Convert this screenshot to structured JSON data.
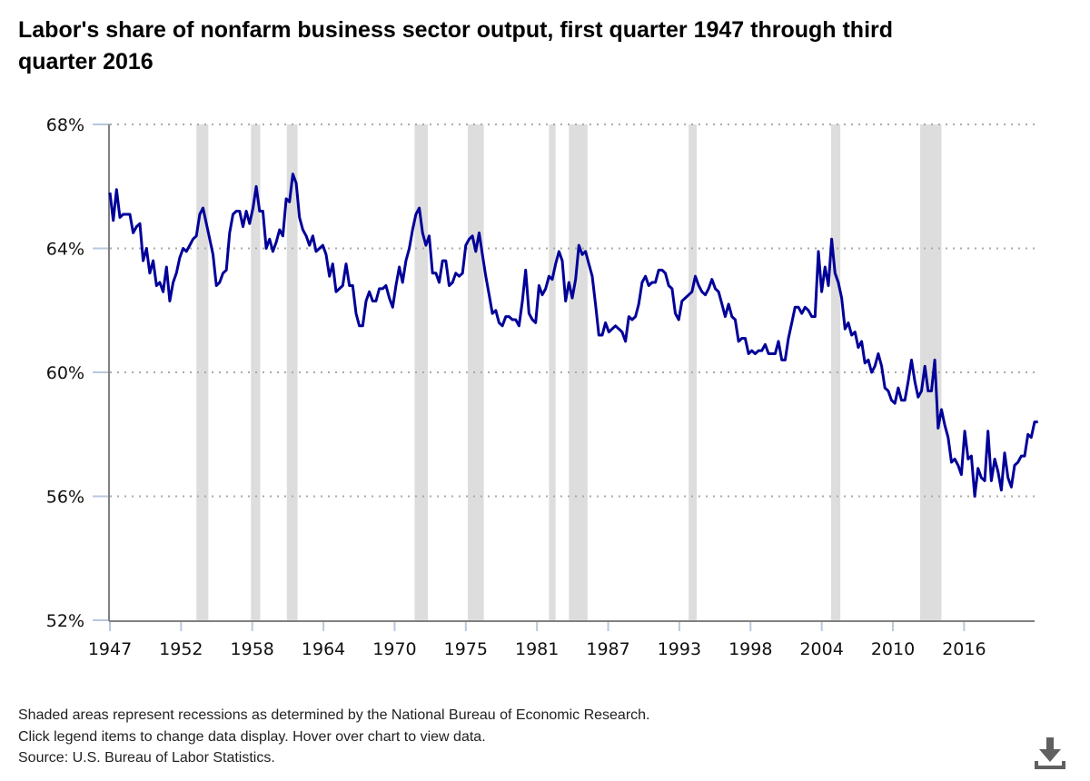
{
  "title": "Labor's share of nonfarm business sector output, first quarter 1947 through third quarter 2016",
  "notes": [
    "Shaded areas represent recessions as determined by the National Bureau of Economic Research.",
    "Click legend items to change data display. Hover over chart to view data.",
    "Source: U.S. Bureau of Labor Statistics."
  ],
  "download_icon": "download-icon",
  "colors": {
    "line": "#000099",
    "recession": "#dddddd",
    "grid": "#aaaaaa",
    "axis": "#808080",
    "tick": "#b8c8dc"
  },
  "chart_data": {
    "type": "line",
    "title": "Labor's share of nonfarm business sector output, first quarter 1947 through third quarter 2016",
    "xlabel": "",
    "ylabel": "",
    "x_range": [
      1947.0,
      2016.5
    ],
    "ylim": [
      52,
      68
    ],
    "y_ticks": [
      52,
      56,
      60,
      64,
      68
    ],
    "y_tick_labels": [
      "52%",
      "56%",
      "60%",
      "64%",
      "68%"
    ],
    "x_ticks": [
      1947.0,
      1952.35,
      1957.7,
      1963.05,
      1968.4,
      1973.75,
      1979.1,
      1984.45,
      1989.8,
      1995.15,
      2000.5,
      2005.85,
      2011.2
    ],
    "x_tick_labels": [
      "1947",
      "1952",
      "1958",
      "1964",
      "1970",
      "1975",
      "1981",
      "1987",
      "1993",
      "1998",
      "2004",
      "2010",
      "2016"
    ],
    "grid": "horizontal-dotted",
    "legend": "none",
    "recessions": [
      [
        1953.5,
        1954.4
      ],
      [
        1957.6,
        1958.3
      ],
      [
        1960.3,
        1961.1
      ],
      [
        1969.9,
        1970.9
      ],
      [
        1973.9,
        1975.1
      ],
      [
        1980.0,
        1980.5
      ],
      [
        1981.5,
        1982.9
      ],
      [
        1990.5,
        1991.1
      ],
      [
        2001.2,
        2001.9
      ],
      [
        2007.9,
        2009.5
      ]
    ],
    "series": [
      {
        "name": "Labor share",
        "points": [
          [
            1947.0,
            65.8
          ],
          [
            1947.25,
            64.9
          ],
          [
            1947.5,
            65.9
          ],
          [
            1947.75,
            65.0
          ],
          [
            1948.0,
            65.1
          ],
          [
            1948.25,
            65.1
          ],
          [
            1948.5,
            65.1
          ],
          [
            1948.75,
            64.5
          ],
          [
            1949.0,
            64.7
          ],
          [
            1949.25,
            64.8
          ],
          [
            1949.5,
            63.6
          ],
          [
            1949.75,
            64.0
          ],
          [
            1950.0,
            63.2
          ],
          [
            1950.25,
            63.6
          ],
          [
            1950.5,
            62.8
          ],
          [
            1950.75,
            62.9
          ],
          [
            1951.0,
            62.6
          ],
          [
            1951.25,
            63.4
          ],
          [
            1951.5,
            62.3
          ],
          [
            1951.75,
            62.9
          ],
          [
            1952.0,
            63.2
          ],
          [
            1952.25,
            63.7
          ],
          [
            1952.5,
            64.0
          ],
          [
            1952.75,
            63.9
          ],
          [
            1953.0,
            64.1
          ],
          [
            1953.25,
            64.3
          ],
          [
            1953.5,
            64.4
          ],
          [
            1953.75,
            65.1
          ],
          [
            1954.0,
            65.3
          ],
          [
            1954.25,
            64.8
          ],
          [
            1954.5,
            64.3
          ],
          [
            1954.75,
            63.8
          ],
          [
            1955.0,
            62.8
          ],
          [
            1955.25,
            62.9
          ],
          [
            1955.5,
            63.2
          ],
          [
            1955.75,
            63.3
          ],
          [
            1956.0,
            64.5
          ],
          [
            1956.25,
            65.1
          ],
          [
            1956.5,
            65.2
          ],
          [
            1956.75,
            65.2
          ],
          [
            1957.0,
            64.7
          ],
          [
            1957.25,
            65.2
          ],
          [
            1957.5,
            64.8
          ],
          [
            1957.75,
            65.3
          ],
          [
            1958.0,
            66.0
          ],
          [
            1958.25,
            65.2
          ],
          [
            1958.5,
            65.2
          ],
          [
            1958.75,
            64.0
          ],
          [
            1959.0,
            64.3
          ],
          [
            1959.25,
            63.9
          ],
          [
            1959.5,
            64.2
          ],
          [
            1959.75,
            64.6
          ],
          [
            1960.0,
            64.4
          ],
          [
            1960.25,
            65.6
          ],
          [
            1960.5,
            65.5
          ],
          [
            1960.75,
            66.4
          ],
          [
            1961.0,
            66.1
          ],
          [
            1961.25,
            65.0
          ],
          [
            1961.5,
            64.6
          ],
          [
            1961.75,
            64.4
          ],
          [
            1962.0,
            64.1
          ],
          [
            1962.25,
            64.4
          ],
          [
            1962.5,
            63.9
          ],
          [
            1962.75,
            64.0
          ],
          [
            1963.0,
            64.1
          ],
          [
            1963.25,
            63.8
          ],
          [
            1963.5,
            63.1
          ],
          [
            1963.75,
            63.5
          ],
          [
            1964.0,
            62.6
          ],
          [
            1964.25,
            62.7
          ],
          [
            1964.5,
            62.8
          ],
          [
            1964.75,
            63.5
          ],
          [
            1965.0,
            62.8
          ],
          [
            1965.25,
            62.8
          ],
          [
            1965.5,
            61.9
          ],
          [
            1965.75,
            61.5
          ],
          [
            1966.0,
            61.5
          ],
          [
            1966.25,
            62.3
          ],
          [
            1966.5,
            62.6
          ],
          [
            1966.75,
            62.3
          ],
          [
            1967.0,
            62.3
          ],
          [
            1967.25,
            62.7
          ],
          [
            1967.5,
            62.7
          ],
          [
            1967.75,
            62.8
          ],
          [
            1968.0,
            62.4
          ],
          [
            1968.25,
            62.1
          ],
          [
            1968.5,
            62.8
          ],
          [
            1968.75,
            63.4
          ],
          [
            1969.0,
            62.9
          ],
          [
            1969.25,
            63.6
          ],
          [
            1969.5,
            64.0
          ],
          [
            1969.75,
            64.6
          ],
          [
            1970.0,
            65.1
          ],
          [
            1970.25,
            65.3
          ],
          [
            1970.5,
            64.5
          ],
          [
            1970.75,
            64.1
          ],
          [
            1971.0,
            64.4
          ],
          [
            1971.25,
            63.2
          ],
          [
            1971.5,
            63.2
          ],
          [
            1971.75,
            62.9
          ],
          [
            1972.0,
            63.6
          ],
          [
            1972.25,
            63.6
          ],
          [
            1972.5,
            62.8
          ],
          [
            1972.75,
            62.9
          ],
          [
            1973.0,
            63.2
          ],
          [
            1973.25,
            63.1
          ],
          [
            1973.5,
            63.2
          ],
          [
            1973.75,
            64.1
          ],
          [
            1974.0,
            64.3
          ],
          [
            1974.25,
            64.4
          ],
          [
            1974.5,
            63.9
          ],
          [
            1974.75,
            64.5
          ],
          [
            1975.0,
            63.8
          ],
          [
            1975.25,
            63.1
          ],
          [
            1975.5,
            62.5
          ],
          [
            1975.75,
            61.9
          ],
          [
            1976.0,
            62.0
          ],
          [
            1976.25,
            61.6
          ],
          [
            1976.5,
            61.5
          ],
          [
            1976.75,
            61.8
          ],
          [
            1977.0,
            61.8
          ],
          [
            1977.25,
            61.7
          ],
          [
            1977.5,
            61.7
          ],
          [
            1977.75,
            61.5
          ],
          [
            1978.0,
            62.3
          ],
          [
            1978.25,
            63.3
          ],
          [
            1978.5,
            61.9
          ],
          [
            1978.75,
            61.7
          ],
          [
            1979.0,
            61.6
          ],
          [
            1979.25,
            62.8
          ],
          [
            1979.5,
            62.5
          ],
          [
            1979.75,
            62.7
          ],
          [
            1980.0,
            63.1
          ],
          [
            1980.25,
            63.0
          ],
          [
            1980.5,
            63.5
          ],
          [
            1980.75,
            63.9
          ],
          [
            1981.0,
            63.6
          ],
          [
            1981.25,
            62.3
          ],
          [
            1981.5,
            62.9
          ],
          [
            1981.75,
            62.4
          ],
          [
            1982.0,
            63.0
          ],
          [
            1982.25,
            64.1
          ],
          [
            1982.5,
            63.8
          ],
          [
            1982.75,
            63.9
          ],
          [
            1983.0,
            63.5
          ],
          [
            1983.25,
            63.1
          ],
          [
            1983.5,
            62.2
          ],
          [
            1983.75,
            61.2
          ],
          [
            1984.0,
            61.2
          ],
          [
            1984.25,
            61.6
          ],
          [
            1984.5,
            61.3
          ],
          [
            1984.75,
            61.4
          ],
          [
            1985.0,
            61.5
          ],
          [
            1985.25,
            61.4
          ],
          [
            1985.5,
            61.3
          ],
          [
            1985.75,
            61.0
          ],
          [
            1986.0,
            61.8
          ],
          [
            1986.25,
            61.7
          ],
          [
            1986.5,
            61.8
          ],
          [
            1986.75,
            62.2
          ],
          [
            1987.0,
            62.9
          ],
          [
            1987.25,
            63.1
          ],
          [
            1987.5,
            62.8
          ],
          [
            1987.75,
            62.9
          ],
          [
            1988.0,
            62.9
          ],
          [
            1988.25,
            63.3
          ],
          [
            1988.5,
            63.3
          ],
          [
            1988.75,
            63.2
          ],
          [
            1989.0,
            62.8
          ],
          [
            1989.25,
            62.7
          ],
          [
            1989.5,
            61.9
          ],
          [
            1989.75,
            61.7
          ],
          [
            1990.0,
            62.3
          ],
          [
            1990.25,
            62.4
          ],
          [
            1990.5,
            62.5
          ],
          [
            1990.75,
            62.6
          ],
          [
            1991.0,
            63.1
          ],
          [
            1991.25,
            62.8
          ],
          [
            1991.5,
            62.6
          ],
          [
            1991.75,
            62.5
          ],
          [
            1992.0,
            62.7
          ],
          [
            1992.25,
            63.0
          ],
          [
            1992.5,
            62.7
          ],
          [
            1992.75,
            62.6
          ],
          [
            1993.0,
            62.2
          ],
          [
            1993.25,
            61.8
          ],
          [
            1993.5,
            62.2
          ],
          [
            1993.75,
            61.8
          ],
          [
            1994.0,
            61.7
          ],
          [
            1994.25,
            61.0
          ],
          [
            1994.5,
            61.1
          ],
          [
            1994.75,
            61.1
          ],
          [
            1995.0,
            60.6
          ],
          [
            1995.25,
            60.7
          ],
          [
            1995.5,
            60.6
          ],
          [
            1995.75,
            60.7
          ],
          [
            1996.0,
            60.7
          ],
          [
            1996.25,
            60.9
          ],
          [
            1996.5,
            60.6
          ],
          [
            1996.75,
            60.6
          ],
          [
            1997.0,
            60.6
          ],
          [
            1997.25,
            61.0
          ],
          [
            1997.5,
            60.4
          ],
          [
            1997.75,
            60.4
          ],
          [
            1998.0,
            61.1
          ],
          [
            1998.25,
            61.6
          ],
          [
            1998.5,
            62.1
          ],
          [
            1998.75,
            62.1
          ],
          [
            1999.0,
            61.9
          ],
          [
            1999.25,
            62.1
          ],
          [
            1999.5,
            62.0
          ],
          [
            1999.75,
            61.8
          ],
          [
            2000.0,
            61.8
          ],
          [
            2000.25,
            63.9
          ],
          [
            2000.5,
            62.6
          ],
          [
            2000.75,
            63.4
          ],
          [
            2001.0,
            62.8
          ],
          [
            2001.25,
            64.3
          ],
          [
            2001.5,
            63.2
          ],
          [
            2001.75,
            62.9
          ],
          [
            2002.0,
            62.4
          ],
          [
            2002.25,
            61.4
          ],
          [
            2002.5,
            61.6
          ],
          [
            2002.75,
            61.2
          ],
          [
            2003.0,
            61.3
          ],
          [
            2003.25,
            60.8
          ],
          [
            2003.5,
            61.0
          ],
          [
            2003.75,
            60.3
          ],
          [
            2004.0,
            60.4
          ],
          [
            2004.25,
            60.0
          ],
          [
            2004.5,
            60.2
          ],
          [
            2004.75,
            60.6
          ],
          [
            2005.0,
            60.2
          ],
          [
            2005.25,
            59.5
          ],
          [
            2005.5,
            59.4
          ],
          [
            2005.75,
            59.1
          ],
          [
            2006.0,
            59.0
          ],
          [
            2006.25,
            59.5
          ],
          [
            2006.5,
            59.1
          ],
          [
            2006.75,
            59.1
          ],
          [
            2007.0,
            59.7
          ],
          [
            2007.25,
            60.4
          ],
          [
            2007.5,
            59.7
          ],
          [
            2007.75,
            59.2
          ],
          [
            2008.0,
            59.4
          ],
          [
            2008.25,
            60.2
          ],
          [
            2008.5,
            59.4
          ],
          [
            2008.75,
            59.4
          ],
          [
            2009.0,
            60.4
          ],
          [
            2009.25,
            58.2
          ],
          [
            2009.5,
            58.8
          ],
          [
            2009.75,
            58.3
          ],
          [
            2010.0,
            57.9
          ],
          [
            2010.25,
            57.1
          ],
          [
            2010.5,
            57.2
          ],
          [
            2010.75,
            57.0
          ],
          [
            2011.0,
            56.7
          ],
          [
            2011.25,
            58.1
          ],
          [
            2011.5,
            57.2
          ],
          [
            2011.75,
            57.3
          ],
          [
            2012.0,
            56.0
          ],
          [
            2012.25,
            56.9
          ],
          [
            2012.5,
            56.6
          ],
          [
            2012.75,
            56.5
          ],
          [
            2013.0,
            58.1
          ],
          [
            2013.25,
            56.5
          ],
          [
            2013.5,
            57.2
          ],
          [
            2013.75,
            56.8
          ],
          [
            2014.0,
            56.2
          ],
          [
            2014.25,
            57.4
          ],
          [
            2014.5,
            56.6
          ],
          [
            2014.75,
            56.3
          ],
          [
            2015.0,
            57.0
          ],
          [
            2015.25,
            57.1
          ],
          [
            2015.5,
            57.3
          ],
          [
            2015.75,
            57.3
          ],
          [
            2016.0,
            58.0
          ],
          [
            2016.25,
            57.9
          ],
          [
            2016.5,
            58.4
          ],
          [
            2016.75,
            58.4
          ]
        ]
      }
    ]
  }
}
